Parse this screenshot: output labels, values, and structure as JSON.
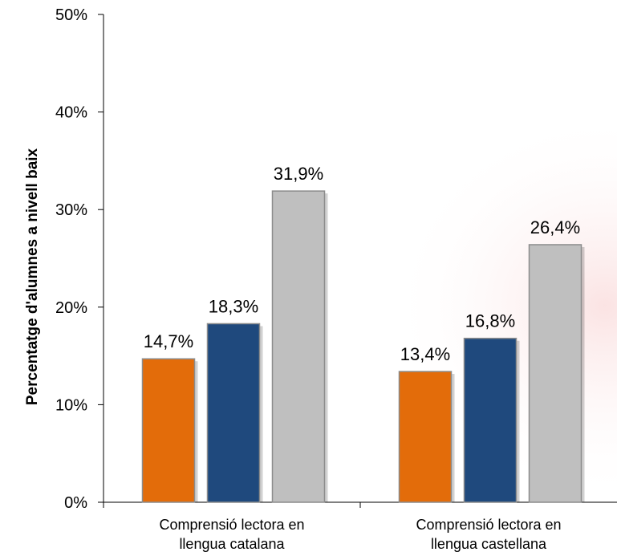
{
  "chart_data": {
    "type": "bar",
    "title": "",
    "xlabel": "",
    "ylabel": "Percentatge d'alumnes a nivell baix",
    "ylim": [
      0,
      50
    ],
    "y_ticks": [
      0,
      10,
      20,
      30,
      40,
      50
    ],
    "y_tick_labels": [
      "0%",
      "10%",
      "20%",
      "30%",
      "40%",
      "50%"
    ],
    "categories": [
      [
        "Comprensió lectora en",
        "llengua catalana"
      ],
      [
        "Comprensió lectora en",
        "llengua castellana"
      ]
    ],
    "series": [
      {
        "color": "#E36C0A",
        "values": [
          14.7,
          13.4
        ],
        "labels": [
          "14,7%",
          "13,4%"
        ]
      },
      {
        "color": "#1F497D",
        "values": [
          18.3,
          16.8
        ],
        "labels": [
          "18,3%",
          "16,8%"
        ]
      },
      {
        "color": "#BFBFBF",
        "values": [
          31.9,
          26.4
        ],
        "labels": [
          "31,9%",
          "26,4%"
        ]
      }
    ],
    "grid": false,
    "legend": "none"
  }
}
